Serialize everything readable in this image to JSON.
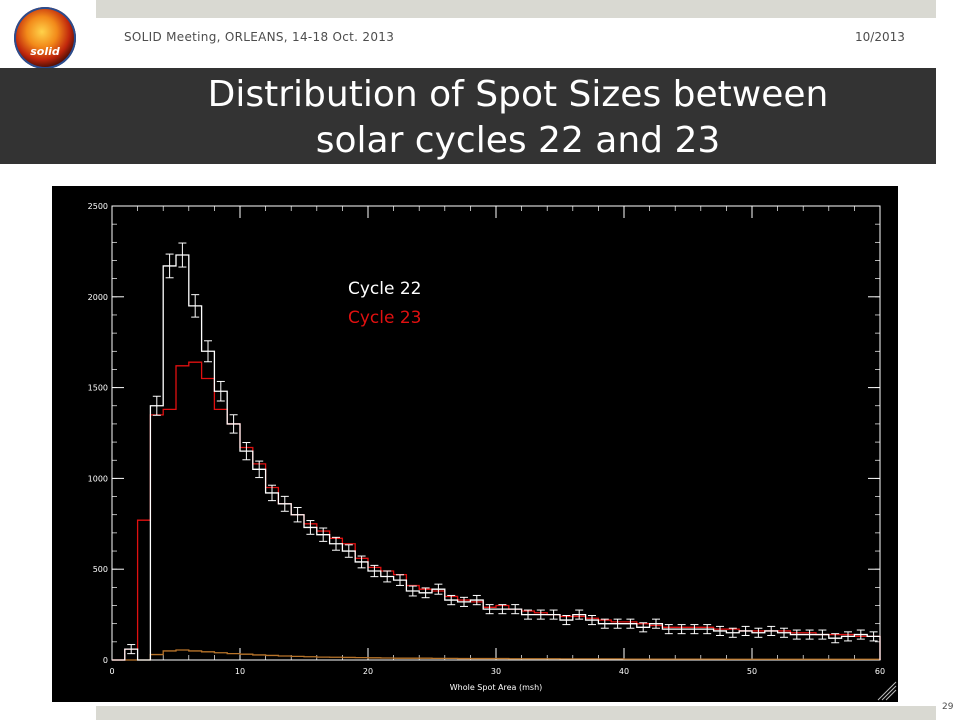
{
  "header": {
    "logo_text": "solid",
    "meeting": "SOLID Meeting, ORLEANS, 14-18 Oct. 2013",
    "date": "10/2013"
  },
  "slide": {
    "title_line1": "Distribution of Spot Sizes between",
    "title_line2": "solar cycles 22 and 23",
    "page_number": "29"
  },
  "colors": {
    "cycle22": "#ffffff",
    "cycle23": "#e01010",
    "low_series": "#b8742a",
    "background": "#000000"
  },
  "chart_data": {
    "type": "line",
    "xlabel": "Whole Spot Area (msh)",
    "ylabel": "",
    "xlim": [
      0,
      60
    ],
    "ylim": [
      0,
      2500
    ],
    "x_ticks": [
      "0",
      "10",
      "20",
      "30",
      "40",
      "50",
      "60"
    ],
    "y_ticks": [
      "0",
      "500",
      "1000",
      "1500",
      "2000",
      "2500"
    ],
    "legend": [
      "Cycle 22",
      "Cycle 23"
    ],
    "legend_position": "top-center",
    "bin_width": 1,
    "series": [
      {
        "name": "Cycle 22",
        "color": "#ffffff",
        "error_bars": true,
        "values": [
          0,
          60,
          0,
          1400,
          2170,
          2230,
          1950,
          1700,
          1480,
          1300,
          1150,
          1050,
          920,
          860,
          800,
          730,
          690,
          640,
          600,
          540,
          490,
          460,
          440,
          380,
          370,
          390,
          330,
          320,
          330,
          280,
          280,
          280,
          250,
          250,
          250,
          220,
          250,
          220,
          200,
          200,
          200,
          180,
          200,
          170,
          170,
          170,
          170,
          160,
          150,
          160,
          150,
          160,
          150,
          140,
          140,
          140,
          120,
          130,
          140,
          130
        ]
      },
      {
        "name": "Cycle 23",
        "color": "#e01010",
        "error_bars": false,
        "values": [
          0,
          60,
          770,
          1350,
          1380,
          1620,
          1640,
          1550,
          1380,
          1300,
          1170,
          1080,
          950,
          860,
          800,
          750,
          710,
          670,
          640,
          560,
          510,
          490,
          470,
          410,
          390,
          380,
          350,
          330,
          320,
          290,
          300,
          280,
          270,
          260,
          250,
          240,
          240,
          230,
          220,
          210,
          210,
          200,
          190,
          180,
          180,
          180,
          180,
          170,
          170,
          160,
          160,
          160,
          160,
          150,
          150,
          140,
          140,
          140,
          130,
          130
        ]
      },
      {
        "name": "",
        "color": "#b8742a",
        "error_bars": false,
        "values": [
          0,
          0,
          0,
          30,
          50,
          55,
          50,
          45,
          40,
          35,
          32,
          28,
          25,
          22,
          20,
          18,
          16,
          15,
          14,
          13,
          12,
          11,
          10,
          10,
          10,
          9,
          9,
          8,
          8,
          8,
          8,
          7,
          7,
          7,
          7,
          6,
          6,
          6,
          6,
          6,
          5,
          5,
          5,
          5,
          5,
          5,
          5,
          5,
          4,
          4,
          4,
          4,
          4,
          4,
          4,
          4,
          4,
          4,
          4,
          4
        ]
      }
    ]
  }
}
